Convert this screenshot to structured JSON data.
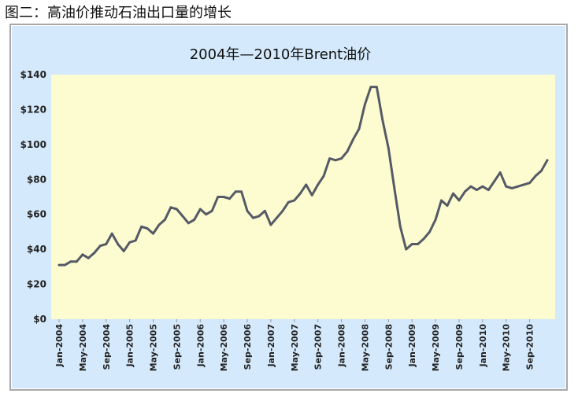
{
  "caption": "图二：高油价推动石油出口量的增长",
  "colors": {
    "outer_background": "#d4e9fb",
    "plot_background": "#fdfcd0",
    "line": "#555a66",
    "axis_text": "#222222",
    "grid": "#dcdcb4",
    "frame": "#a8a8a8"
  },
  "chart_data": {
    "type": "line",
    "title": "2004年—2010年Brent油价",
    "xlabel": "",
    "ylabel": "",
    "ylim": [
      0,
      140
    ],
    "grid": false,
    "legend": "none",
    "y_ticks": [
      0,
      20,
      40,
      60,
      80,
      100,
      120,
      140
    ],
    "y_tick_labels": [
      "$0",
      "$20",
      "$40",
      "$60",
      "$80",
      "$100",
      "$120",
      "$140"
    ],
    "x_tick_labels": [
      "Jan-2004",
      "May-2004",
      "Sep-2004",
      "Jan-2005",
      "May-2005",
      "Sep-2005",
      "Jan-2006",
      "May-2006",
      "Sep-2006",
      "Jan-2007",
      "May-2007",
      "Sep-2007",
      "Jan-2008",
      "May-2008",
      "Sep-2008",
      "Jan-2009",
      "May-2009",
      "Sep-2009",
      "Jan-2010",
      "May-2010",
      "Sep-2010"
    ],
    "series": [
      {
        "values": [
          31,
          31,
          33,
          33,
          37,
          35,
          38,
          42,
          43,
          49,
          43,
          39,
          44,
          45,
          53,
          52,
          49,
          54,
          57,
          64,
          63,
          59,
          55,
          57,
          63,
          60,
          62,
          70,
          70,
          69,
          73,
          73,
          62,
          58,
          59,
          62,
          54,
          58,
          62,
          67,
          68,
          72,
          77,
          71,
          77,
          82,
          92,
          91,
          92,
          96,
          103,
          109,
          123,
          133,
          133,
          114,
          98,
          75,
          53,
          40,
          43,
          43,
          46,
          50,
          57,
          68,
          65,
          72,
          68,
          73,
          76,
          74,
          76,
          74,
          79,
          84,
          76,
          75,
          76,
          77,
          78,
          82,
          85,
          91
        ]
      }
    ]
  }
}
